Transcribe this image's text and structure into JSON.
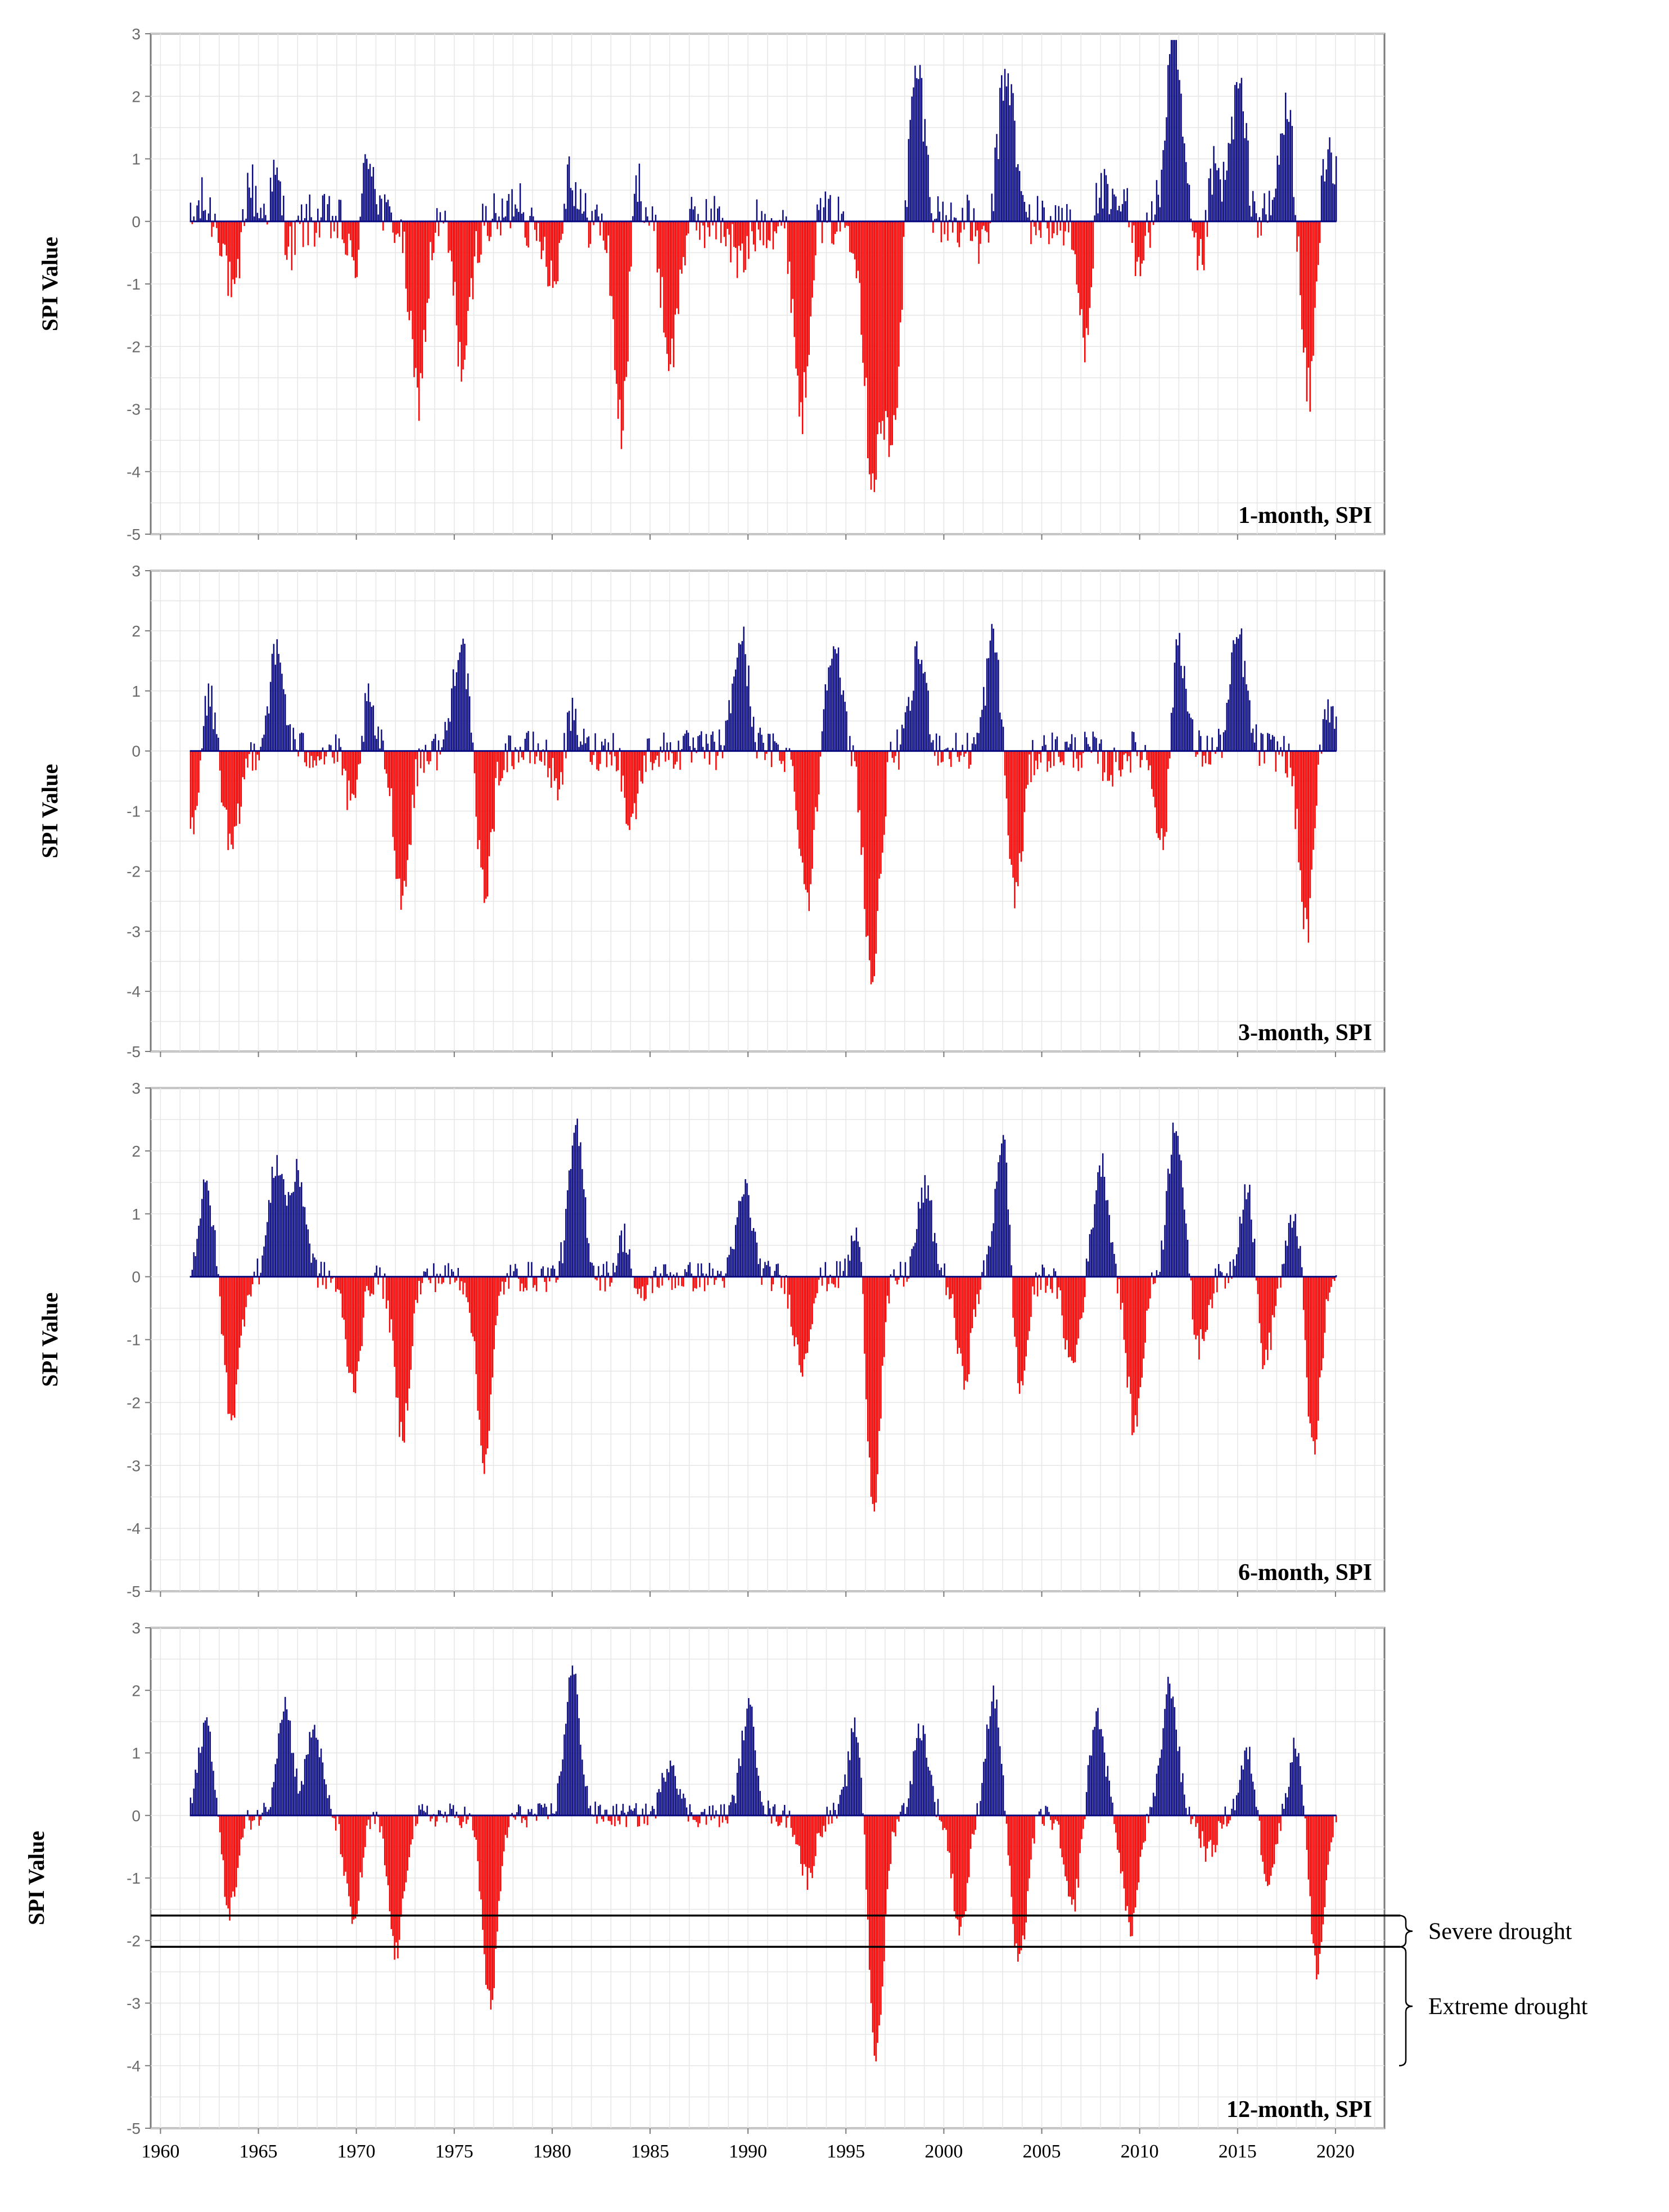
{
  "chart_data": [
    {
      "type": "bar",
      "title": "1-month, SPI",
      "ylabel": "SPI Value",
      "xlabel": "",
      "ylim": [
        -5,
        3
      ],
      "xlim": [
        1959.5,
        2022.5
      ],
      "yticks": [
        3,
        2,
        1,
        0,
        -1,
        -2,
        -3,
        -4,
        -5
      ],
      "colors": {
        "positive": "#0a0a80",
        "negative": "#ff0000"
      },
      "series_profile": {
        "start_year": 1961.5,
        "end_year": 2020.0,
        "positive_peaks": [
          [
            1961.8,
            1.4
          ],
          [
            1964.2,
            1.8
          ],
          [
            1966.1,
            1.8
          ],
          [
            1970.4,
            2.2
          ],
          [
            1978.5,
            2.2
          ],
          [
            1980.6,
            2.0
          ],
          [
            1984.0,
            1.9
          ],
          [
            1989.6,
            1.9
          ],
          [
            1993.0,
            1.8
          ],
          [
            1998.6,
            2.4
          ],
          [
            2002.4,
            2.1
          ],
          [
            2003.2,
            2.3
          ],
          [
            2007.6,
            1.9
          ],
          [
            2009.5,
            2.4
          ],
          [
            2011.7,
            2.9
          ],
          [
            2013.5,
            2.5
          ],
          [
            2015.0,
            2.1
          ],
          [
            2017.5,
            1.8
          ],
          [
            2019.5,
            1.4
          ]
        ],
        "negative_troughs": [
          [
            1961.7,
            -1.3
          ],
          [
            1963.9,
            -2.4
          ],
          [
            1966.3,
            -1.6
          ],
          [
            1970.1,
            -1.9
          ],
          [
            1973.1,
            -2.8
          ],
          [
            1975.4,
            -2.3
          ],
          [
            1978.6,
            -2.0
          ],
          [
            1980.3,
            -2.1
          ],
          [
            1983.6,
            -4.3
          ],
          [
            1986.0,
            -2.2
          ],
          [
            1989.6,
            -2.6
          ],
          [
            1992.8,
            -4.5
          ],
          [
            1996.3,
            -3.9
          ],
          [
            1997.3,
            -3.5
          ],
          [
            2002.3,
            -2.3
          ],
          [
            2007.3,
            -3.0
          ],
          [
            2009.6,
            -2.6
          ],
          [
            2013.3,
            -2.5
          ],
          [
            2018.6,
            -2.9
          ]
        ],
        "noise": 0.45
      }
    },
    {
      "type": "bar",
      "title": "3-month, SPI",
      "ylabel": "SPI Value",
      "xlabel": "",
      "ylim": [
        -5,
        3
      ],
      "xlim": [
        1959.5,
        2022.5
      ],
      "yticks": [
        3,
        2,
        1,
        0,
        -1,
        -2,
        -3,
        -4,
        -5
      ],
      "colors": {
        "positive": "#0a0a80",
        "negative": "#ff0000"
      },
      "series_profile": {
        "start_year": 1961.5,
        "end_year": 2020.0,
        "positive_peaks": [
          [
            1962.3,
            1.3
          ],
          [
            1965.9,
            1.6
          ],
          [
            1970.3,
            1.9
          ],
          [
            1975.3,
            1.9
          ],
          [
            1980.7,
            1.8
          ],
          [
            1983.7,
            2.6
          ],
          [
            1989.6,
            1.9
          ],
          [
            1994.3,
            1.9
          ],
          [
            1998.7,
            1.6
          ],
          [
            2002.5,
            1.9
          ],
          [
            2008.5,
            2.1
          ],
          [
            2011.8,
            2.7
          ],
          [
            2015.0,
            1.9
          ],
          [
            2019.5,
            0.9
          ]
        ],
        "negative_troughs": [
          [
            1961.7,
            -1.7
          ],
          [
            1963.6,
            -1.7
          ],
          [
            1970.0,
            -2.1
          ],
          [
            1972.3,
            -2.4
          ],
          [
            1976.5,
            -2.3
          ],
          [
            1980.5,
            -1.8
          ],
          [
            1983.8,
            -3.6
          ],
          [
            1993.0,
            -2.4
          ],
          [
            1996.3,
            -3.8
          ],
          [
            2003.6,
            -2.4
          ],
          [
            2008.5,
            -2.4
          ],
          [
            2011.3,
            -2.4
          ],
          [
            2018.5,
            -3.0
          ]
        ],
        "noise": 0.35
      }
    },
    {
      "type": "bar",
      "title": "6-month, SPI",
      "ylabel": "SPI Value",
      "xlabel": "",
      "ylim": [
        -5,
        3
      ],
      "xlim": [
        1959.5,
        2022.5
      ],
      "yticks": [
        3,
        2,
        1,
        0,
        -1,
        -2,
        -3,
        -4,
        -5
      ],
      "colors": {
        "positive": "#0a0a80",
        "negative": "#ff0000"
      },
      "series_profile": {
        "start_year": 1961.5,
        "end_year": 2020.0,
        "positive_peaks": [
          [
            1962.3,
            1.4
          ],
          [
            1965.9,
            1.8
          ],
          [
            1967.0,
            1.6
          ],
          [
            1981.2,
            2.3
          ],
          [
            1983.9,
            1.8
          ],
          [
            1989.8,
            1.4
          ],
          [
            1995.8,
            1.6
          ],
          [
            1999.0,
            1.4
          ],
          [
            2003.0,
            2.4
          ],
          [
            2008.0,
            1.8
          ],
          [
            2011.8,
            2.5
          ],
          [
            2015.5,
            1.6
          ],
          [
            2018.0,
            1.2
          ]
        ],
        "negative_troughs": [
          [
            1963.6,
            -2.2
          ],
          [
            1969.8,
            -1.7
          ],
          [
            1972.3,
            -2.5
          ],
          [
            1976.5,
            -2.9
          ],
          [
            1984.1,
            -1.6
          ],
          [
            1992.7,
            -1.4
          ],
          [
            1996.3,
            -4.2
          ],
          [
            2001.0,
            -1.6
          ],
          [
            2003.8,
            -2.0
          ],
          [
            2006.5,
            -1.4
          ],
          [
            2009.7,
            -2.4
          ],
          [
            2013.0,
            -1.1
          ],
          [
            2016.3,
            -1.5
          ],
          [
            2018.8,
            -2.9
          ]
        ],
        "noise": 0.25
      }
    },
    {
      "type": "bar",
      "title": "12-month, SPI",
      "ylabel": "SPI Value",
      "xlabel": "",
      "ylim": [
        -5,
        3
      ],
      "xlim": [
        1959.5,
        2022.5
      ],
      "yticks": [
        3,
        2,
        1,
        0,
        -1,
        -2,
        -3,
        -4,
        -5
      ],
      "xticks": [
        1960,
        1965,
        1970,
        1975,
        1980,
        1985,
        1990,
        1995,
        2000,
        2005,
        2010,
        2015,
        2020
      ],
      "colors": {
        "positive": "#0a0a80",
        "negative": "#ff0000"
      },
      "thresholds": [
        -1.6,
        -2.1
      ],
      "annotations": [
        {
          "label": "Severe drought",
          "range": [
            -1.6,
            -2.1
          ]
        },
        {
          "label": "Extreme drought",
          "range": [
            -2.1,
            -4.0
          ]
        }
      ],
      "series_profile": {
        "start_year": 1961.5,
        "end_year": 2020.0,
        "positive_peaks": [
          [
            1962.3,
            1.5
          ],
          [
            1966.3,
            1.8
          ],
          [
            1967.8,
            1.4
          ],
          [
            1981.0,
            2.3
          ],
          [
            1986.0,
            0.9
          ],
          [
            1990.0,
            1.7
          ],
          [
            1995.5,
            1.5
          ],
          [
            1998.8,
            1.4
          ],
          [
            2002.5,
            1.9
          ],
          [
            2007.8,
            1.6
          ],
          [
            2011.5,
            2.1
          ],
          [
            2015.5,
            1.0
          ],
          [
            2018.0,
            1.2
          ]
        ],
        "negative_troughs": [
          [
            1963.5,
            -1.5
          ],
          [
            1969.8,
            -1.7
          ],
          [
            1972.0,
            -2.2
          ],
          [
            1976.8,
            -3.0
          ],
          [
            1993.0,
            -1.0
          ],
          [
            1996.5,
            -3.9
          ],
          [
            2000.8,
            -1.8
          ],
          [
            2003.8,
            -2.4
          ],
          [
            2006.5,
            -1.5
          ],
          [
            2009.5,
            -1.8
          ],
          [
            2013.5,
            -0.6
          ],
          [
            2016.5,
            -1.0
          ],
          [
            2019.0,
            -2.5
          ]
        ],
        "noise": 0.2
      }
    }
  ]
}
